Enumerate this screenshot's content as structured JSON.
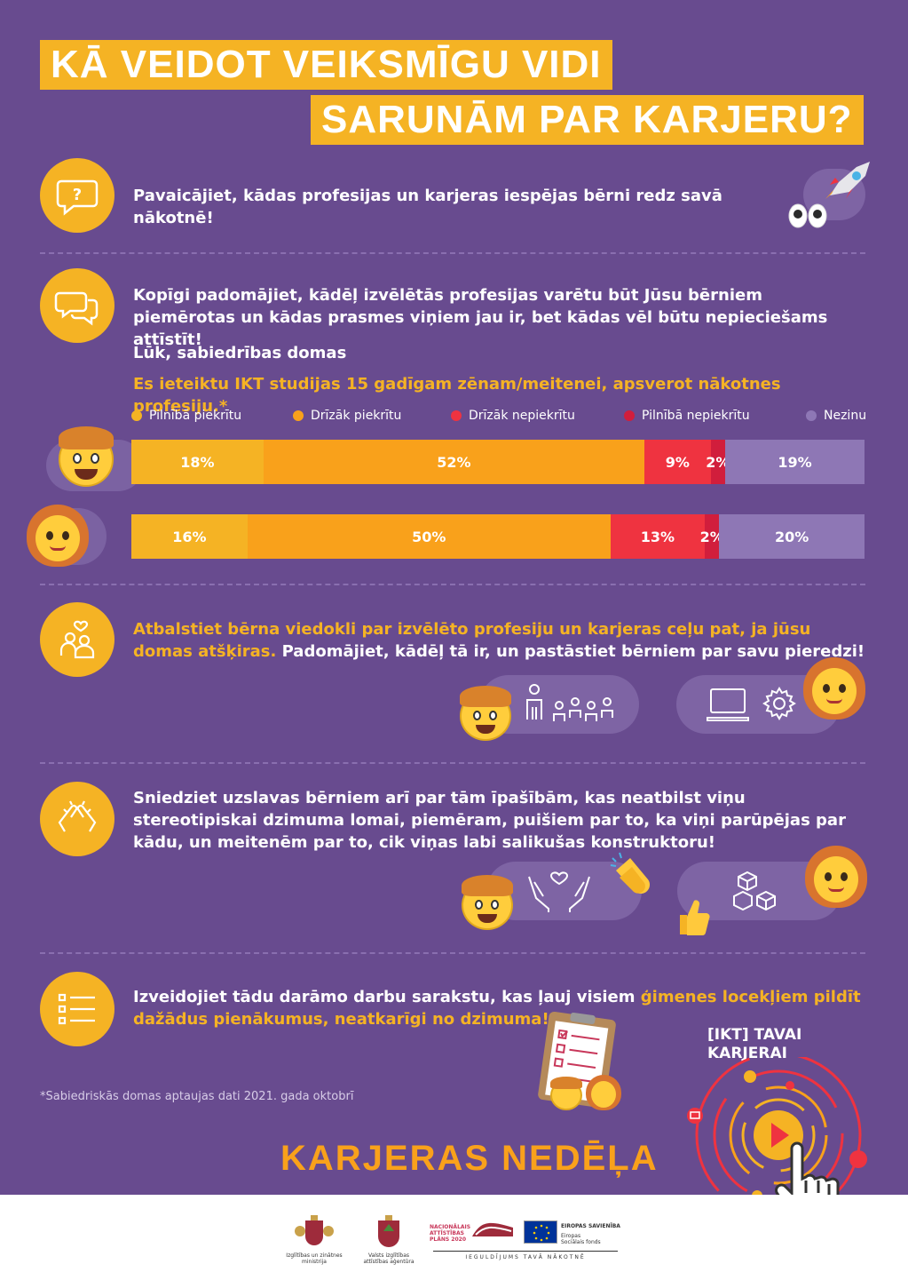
{
  "title": {
    "line1": "KĀ VEIDOT VEIKSMĪGU VIDI",
    "line2": "SARUNĀM PAR KARJERU?"
  },
  "section1": {
    "text": "Pavaicājiet, kādas profesijas un karjeras iespējas bērni redz savā nākotnē!"
  },
  "section2": {
    "text": "Kopīgi padomājiet, kādēļ izvēlētās profesijas varētu būt Jūsu bērniem piemērotas un kādas prasmes viņiem jau ir, bet kādas vēl būtu nepieciešams attīstīt!",
    "subheading": "Lūk, sabiedrības domas",
    "question": "Es ieteiktu IKT studijas 15 gadīgam zēnam/meitenei, apsverot nākotnes profesiju.*"
  },
  "legend": [
    {
      "label": "Pilnībā piekrītu",
      "color": "#f5b324"
    },
    {
      "label": "Drīzāk piekrītu",
      "color": "#f9a11b"
    },
    {
      "label": "Drīzāk nepiekrītu",
      "color": "#ef3340"
    },
    {
      "label": "Pilnībā nepiekrītu",
      "color": "#d11e3c"
    },
    {
      "label": "Nezinu",
      "color": "#8e77b5"
    }
  ],
  "chart_data": {
    "type": "bar",
    "stacked": true,
    "orientation": "horizontal",
    "categories": [
      "Pilnībā piekrītu",
      "Drīzāk piekrītu",
      "Drīzāk nepiekrītu",
      "Pilnībā nepiekrītu",
      "Nezinu"
    ],
    "series": [
      {
        "values": [
          18,
          52,
          9,
          2,
          19
        ],
        "labels": [
          "18%",
          "52%",
          "9%",
          "2%",
          "19%"
        ]
      },
      {
        "values": [
          16,
          50,
          13,
          2,
          20
        ],
        "labels": [
          "16%",
          "50%",
          "13%",
          "2%",
          "20%"
        ]
      }
    ],
    "colors": [
      "#f5b324",
      "#f9a11b",
      "#ef3340",
      "#d11e3c",
      "#8e77b5"
    ]
  },
  "section3": {
    "text_highlight": "Atbalstiet bērna viedokli par izvēlēto profesiju un karjeras ceļu pat, ja jūsu domas atšķiras.",
    "text_rest": " Padomājiet, kādēļ tā ir, un pastāstiet bērniem par savu pieredzi!"
  },
  "section4": {
    "text": "Sniedziet uzslavas bērniem arī par tām īpašībām, kas neatbilst viņu stereotipiskai dzimuma lomai, piemēram, puišiem par to, ka viņi parūpējas par kādu, un meitenēm par to, cik viņas labi salikušas konstruktoru!"
  },
  "section5": {
    "text_normal": "Izveidojiet tādu darāmo darbu sarakstu, kas ļauj visiem ",
    "text_highlight": "ģimenes locekļiem pildīt dažādus pienākumus, neatkarīgi no dzimuma!"
  },
  "footnote": "*Sabiedriskās domas aptaujas dati 2021. gada oktobrī",
  "brand": {
    "name": "KARJERAS NEDĒĻA",
    "ikt_line1": "[IKT] TAVAI",
    "ikt_line2": "KARJERAI"
  },
  "logos": {
    "ministry": "Izglītības un zinātnes ministrija",
    "agency": "Valsts izglītības attīstības aģentūra",
    "nap": "NACIONĀLAIS ATTĪSTĪBAS PLĀNS 2020",
    "eu": "EIROPAS SAVIENĪBA",
    "esf": "Eiropas Sociālais fonds",
    "motto": "IEGULDĪJUMS TAVĀ NĀKOTNĒ"
  },
  "icons": [
    "question-icon",
    "chat-icon",
    "support-icon",
    "clap-icon",
    "checklist-icon",
    "rocket-icon",
    "eyes-icon",
    "laptop-icon",
    "gear-icon",
    "people-icon",
    "cubes-icon",
    "hands-heart-icon",
    "thumbs-up-icon",
    "clapboard-icon",
    "play-icon",
    "pointer-hand-icon"
  ]
}
